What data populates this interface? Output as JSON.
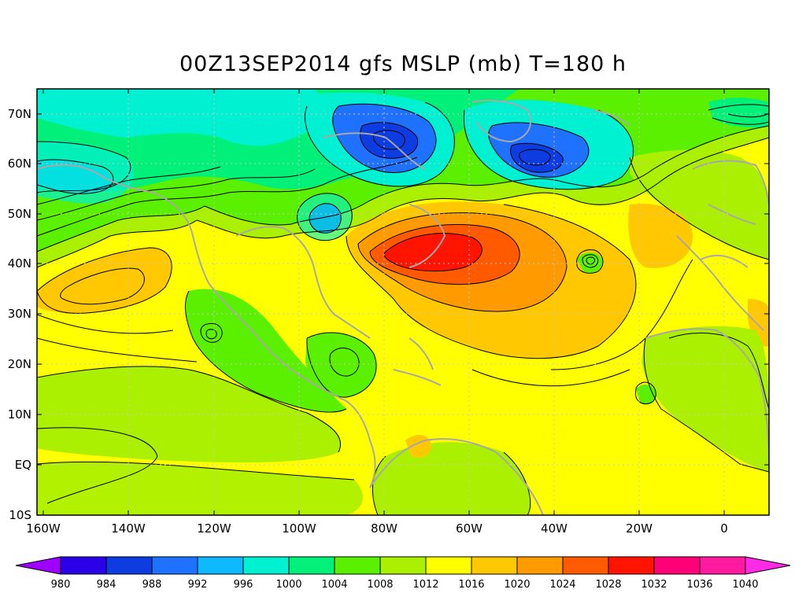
{
  "title": "00Z13SEP2014 gfs MSLP (mb) T=180 h",
  "axes": {
    "lat_ticks": [
      "70N",
      "60N",
      "50N",
      "40N",
      "30N",
      "20N",
      "10N",
      "EQ",
      "10S"
    ],
    "lon_ticks": [
      "160W",
      "140W",
      "120W",
      "100W",
      "80W",
      "60W",
      "40W",
      "20W",
      "0"
    ]
  },
  "colorbar": {
    "labels": [
      "980",
      "984",
      "988",
      "992",
      "996",
      "1000",
      "1004",
      "1008",
      "1012",
      "1016",
      "1020",
      "1024",
      "1028",
      "1032",
      "1036",
      "1040"
    ],
    "colors": [
      "#a000ff",
      "#2a00e6",
      "#0d3ce0",
      "#1f72ff",
      "#0fb9ff",
      "#00f0d2",
      "#00f07a",
      "#5af000",
      "#aaf000",
      "#ffff00",
      "#ffc800",
      "#ff9b00",
      "#ff5a00",
      "#ff1400",
      "#ff0078",
      "#ff1aa0",
      "#ff2ae6"
    ]
  },
  "map": {
    "palette_note_colors": {
      "background": "#ffff00",
      "coast": "#a8a8a8"
    }
  }
}
